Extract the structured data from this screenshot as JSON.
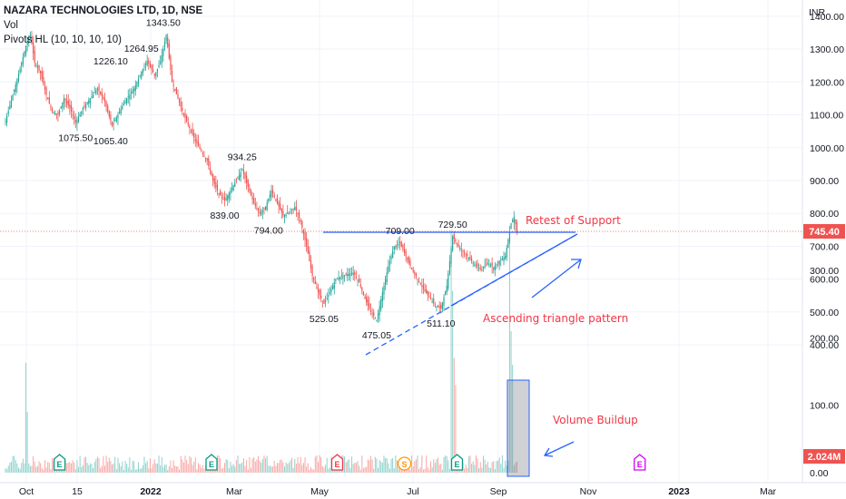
{
  "header": {
    "symbol": "NAZARA TECHNOLOGIES LTD, 1D, NSE",
    "vol_label": "Vol",
    "pivots_label": "Pivots HL (10, 10, 10, 10)"
  },
  "currency": "INR",
  "colors": {
    "up": "#26a69a",
    "down": "#ef5350",
    "trendline": "#2962ff",
    "annotation_text": "#f23645",
    "price_badge": "#ef5350",
    "volume_badge": "#ef5350",
    "earnings_green": "#089981",
    "earnings_red": "#f23645",
    "earnings_purple": "#d500f9",
    "dividend_orange": "#ff9800",
    "grid": "#f0f3fa"
  },
  "chart_data": {
    "type": "candlestick",
    "price_ticks": [
      "1400.00",
      "1300.00",
      "1200.00",
      "1100.00",
      "1000.00",
      "900.00",
      "800.00",
      "700.00",
      "600.00",
      "500.00",
      "400.00"
    ],
    "volume_ticks": [
      "300.00",
      "200.00",
      "100.00",
      "0.00"
    ],
    "x_ticks": [
      "Oct",
      "15",
      "2022",
      "Mar",
      "May",
      "Jul",
      "Sep",
      "Nov",
      "2023",
      "Mar"
    ],
    "last_price": "745.40",
    "last_volume": "2.024M",
    "ylim_price": [
      390,
      1440
    ],
    "ylim_volume": [
      0,
      330
    ],
    "price_anchors": [
      [
        0,
        1080
      ],
      [
        5,
        1160
      ],
      [
        10,
        1240
      ],
      [
        14,
        1310
      ],
      [
        17,
        1343.5
      ],
      [
        20,
        1260
      ],
      [
        24,
        1226.1
      ],
      [
        28,
        1160
      ],
      [
        32,
        1110
      ],
      [
        36,
        1100
      ],
      [
        40,
        1150
      ],
      [
        44,
        1120
      ],
      [
        48,
        1075.5
      ],
      [
        53,
        1120
      ],
      [
        58,
        1150
      ],
      [
        63,
        1180
      ],
      [
        68,
        1140
      ],
      [
        73,
        1065.4
      ],
      [
        78,
        1110
      ],
      [
        83,
        1150
      ],
      [
        88,
        1180
      ],
      [
        93,
        1230
      ],
      [
        97,
        1264.95
      ],
      [
        102,
        1220
      ],
      [
        106,
        1260
      ],
      [
        110,
        1343.5
      ],
      [
        114,
        1200
      ],
      [
        118,
        1150
      ],
      [
        122,
        1100
      ],
      [
        126,
        1060
      ],
      [
        130,
        1020
      ],
      [
        134,
        990
      ],
      [
        138,
        960
      ],
      [
        142,
        900
      ],
      [
        146,
        860
      ],
      [
        150,
        839
      ],
      [
        154,
        870
      ],
      [
        158,
        900
      ],
      [
        162,
        934.25
      ],
      [
        166,
        880
      ],
      [
        170,
        830
      ],
      [
        174,
        800
      ],
      [
        178,
        820
      ],
      [
        182,
        870
      ],
      [
        186,
        830
      ],
      [
        190,
        794
      ],
      [
        194,
        800
      ],
      [
        198,
        820
      ],
      [
        202,
        775
      ],
      [
        206,
        700
      ],
      [
        210,
        610
      ],
      [
        214,
        560
      ],
      [
        218,
        525.05
      ],
      [
        222,
        560
      ],
      [
        226,
        600
      ],
      [
        230,
        610
      ],
      [
        234,
        615
      ],
      [
        238,
        620
      ],
      [
        242,
        590
      ],
      [
        246,
        540
      ],
      [
        250,
        500
      ],
      [
        254,
        475.05
      ],
      [
        258,
        560
      ],
      [
        262,
        640
      ],
      [
        266,
        700
      ],
      [
        270,
        709
      ],
      [
        274,
        670
      ],
      [
        278,
        630
      ],
      [
        282,
        600
      ],
      [
        286,
        570
      ],
      [
        290,
        545
      ],
      [
        294,
        520
      ],
      [
        298,
        511.1
      ],
      [
        302,
        580
      ],
      [
        306,
        729.5
      ],
      [
        310,
        700
      ],
      [
        314,
        680
      ],
      [
        318,
        660
      ],
      [
        322,
        640
      ],
      [
        326,
        630
      ],
      [
        330,
        650
      ],
      [
        334,
        635
      ],
      [
        338,
        655
      ],
      [
        342,
        670
      ],
      [
        344,
        720
      ],
      [
        346,
        770
      ],
      [
        348,
        790
      ],
      [
        350,
        745.4
      ]
    ],
    "pivot_labels": [
      {
        "label": "1343.50",
        "bar": 108,
        "value": 1343.5,
        "pos": "above"
      },
      {
        "label": "1264.95",
        "bar": 93,
        "value": 1264.95,
        "pos": "above"
      },
      {
        "label": "1226.10",
        "bar": 72,
        "value": 1226.1,
        "pos": "above"
      },
      {
        "label": "1075.50",
        "bar": 48,
        "value": 1075.5,
        "pos": "below"
      },
      {
        "label": "1065.40",
        "bar": 72,
        "value": 1065.4,
        "pos": "below"
      },
      {
        "label": "934.25",
        "bar": 162,
        "value": 934.25,
        "pos": "above"
      },
      {
        "label": "839.00",
        "bar": 150,
        "value": 839,
        "pos": "below"
      },
      {
        "label": "794.00",
        "bar": 180,
        "value": 794,
        "pos": "below"
      },
      {
        "label": "709.00",
        "bar": 270,
        "value": 709,
        "pos": "above"
      },
      {
        "label": "729.50",
        "bar": 306,
        "value": 729.5,
        "pos": "above"
      },
      {
        "label": "525.05",
        "bar": 218,
        "value": 525.05,
        "pos": "below"
      },
      {
        "label": "475.05",
        "bar": 254,
        "value": 475.05,
        "pos": "below"
      },
      {
        "label": "511.10",
        "bar": 298,
        "value": 511.1,
        "pos": "below"
      }
    ],
    "volume_spikes": [
      {
        "bar": 14,
        "value": 163
      },
      {
        "bar": 15,
        "value": 90
      },
      {
        "bar": 305,
        "value": 360
      },
      {
        "bar": 306,
        "value": 270
      },
      {
        "bar": 307,
        "value": 170
      },
      {
        "bar": 308,
        "value": 130
      },
      {
        "bar": 345,
        "value": 345
      },
      {
        "bar": 346,
        "value": 210
      },
      {
        "bar": 347,
        "value": 160
      }
    ],
    "events": [
      {
        "type": "E",
        "color_key": "earnings_green",
        "bar": 37
      },
      {
        "type": "E",
        "color_key": "earnings_green",
        "bar": 141
      },
      {
        "type": "E",
        "color_key": "earnings_red",
        "bar": 227
      },
      {
        "type": "S",
        "color_key": "dividend_orange",
        "bar": 273
      },
      {
        "type": "E",
        "color_key": "earnings_green",
        "bar": 309
      },
      {
        "type": "E",
        "color_key": "earnings_purple",
        "bar": 434
      }
    ]
  },
  "annotations": {
    "retest": "Retest of Support",
    "triangle": "Ascending triangle pattern",
    "volume": "Volume Buildup"
  }
}
